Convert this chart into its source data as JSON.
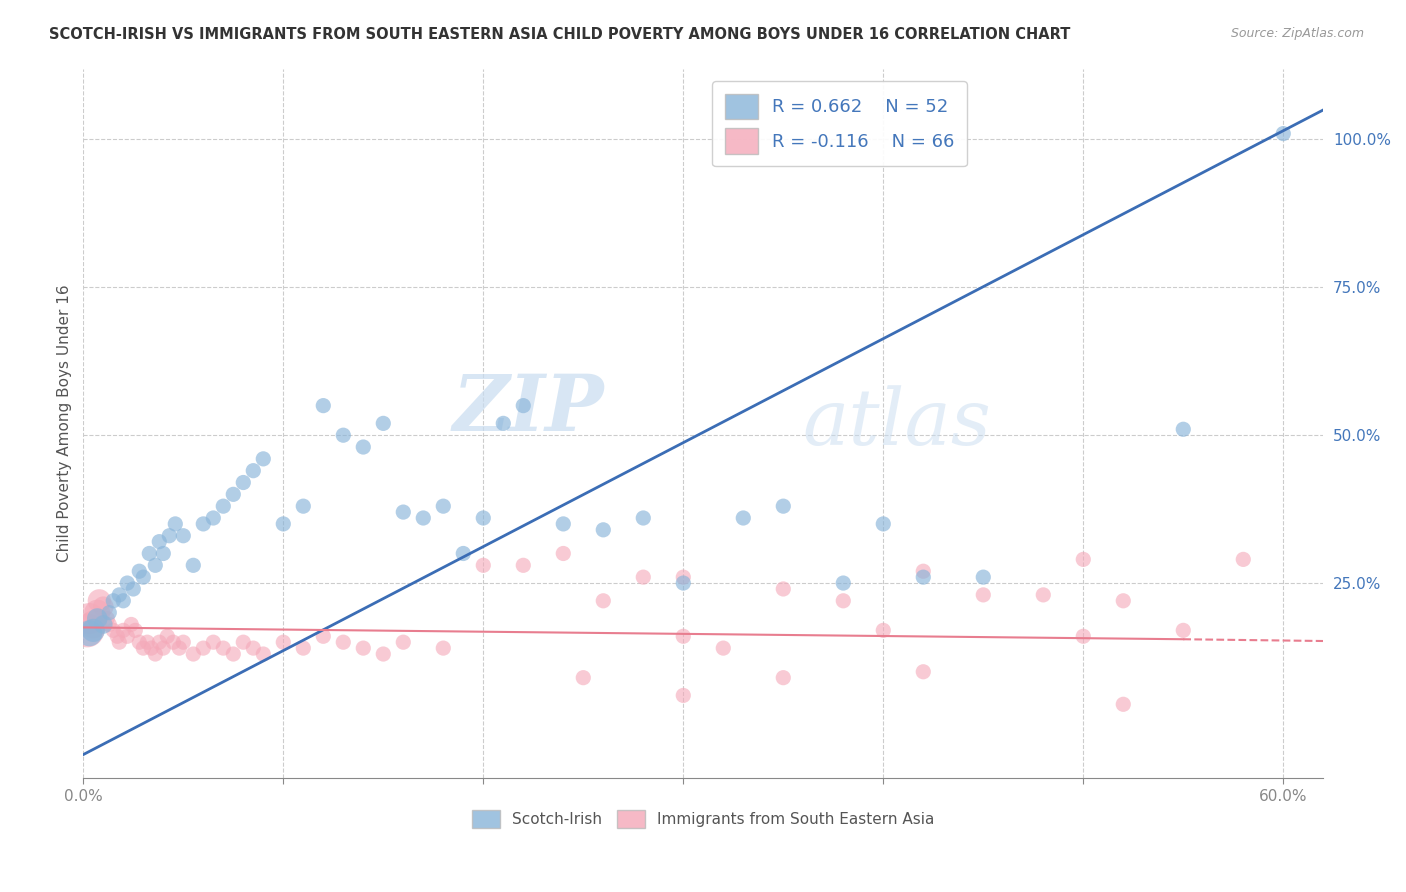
{
  "title": "SCOTCH-IRISH VS IMMIGRANTS FROM SOUTH EASTERN ASIA CHILD POVERTY AMONG BOYS UNDER 16 CORRELATION CHART",
  "source": "Source: ZipAtlas.com",
  "ylabel": "Child Poverty Among Boys Under 16",
  "xlim": [
    0.0,
    0.62
  ],
  "ylim": [
    -0.08,
    1.12
  ],
  "xtick_vals": [
    0.0,
    0.1,
    0.2,
    0.3,
    0.4,
    0.5,
    0.6
  ],
  "xtick_labels": [
    "0.0%",
    "",
    "",
    "",
    "",
    "",
    "60.0%"
  ],
  "ytick_vals": [
    0.25,
    0.5,
    0.75,
    1.0
  ],
  "right_ytick_labels": [
    "25.0%",
    "50.0%",
    "75.0%",
    "100.0%"
  ],
  "watermark_zip": "ZIP",
  "watermark_atlas": "atlas",
  "legend_blue_R": "R = 0.662",
  "legend_blue_N": "N = 52",
  "legend_pink_R": "R = -0.116",
  "legend_pink_N": "N = 66",
  "blue_color": "#89B4D9",
  "pink_color": "#F4A8B8",
  "blue_line_color": "#3B6DB5",
  "pink_line_color": "#E87D8F",
  "grid_color": "#CCCCCC",
  "background_color": "#FFFFFF",
  "blue_line_x0": 0.0,
  "blue_line_y0": -0.04,
  "blue_line_x1": 0.62,
  "blue_line_y1": 1.05,
  "pink_line_x0": 0.0,
  "pink_line_y0": 0.175,
  "pink_line_x1": 0.55,
  "pink_line_y1": 0.155,
  "pink_line_dash_x0": 0.55,
  "pink_line_dash_y0": 0.155,
  "pink_line_dash_x1": 0.62,
  "pink_line_dash_y1": 0.152,
  "blue_scatter_x": [
    0.003,
    0.005,
    0.007,
    0.01,
    0.013,
    0.015,
    0.018,
    0.02,
    0.022,
    0.025,
    0.028,
    0.03,
    0.033,
    0.036,
    0.038,
    0.04,
    0.043,
    0.046,
    0.05,
    0.055,
    0.06,
    0.065,
    0.07,
    0.075,
    0.08,
    0.085,
    0.09,
    0.1,
    0.11,
    0.12,
    0.13,
    0.14,
    0.15,
    0.16,
    0.17,
    0.18,
    0.19,
    0.2,
    0.21,
    0.22,
    0.24,
    0.26,
    0.28,
    0.3,
    0.33,
    0.35,
    0.38,
    0.4,
    0.42,
    0.45,
    0.55,
    0.6
  ],
  "blue_scatter_y": [
    0.165,
    0.17,
    0.19,
    0.18,
    0.2,
    0.22,
    0.23,
    0.22,
    0.25,
    0.24,
    0.27,
    0.26,
    0.3,
    0.28,
    0.32,
    0.3,
    0.33,
    0.35,
    0.33,
    0.28,
    0.35,
    0.36,
    0.38,
    0.4,
    0.42,
    0.44,
    0.46,
    0.35,
    0.38,
    0.55,
    0.5,
    0.48,
    0.52,
    0.37,
    0.36,
    0.38,
    0.3,
    0.36,
    0.52,
    0.55,
    0.35,
    0.34,
    0.36,
    0.25,
    0.36,
    0.38,
    0.25,
    0.35,
    0.26,
    0.26,
    0.51,
    1.01
  ],
  "pink_scatter_x": [
    0.002,
    0.003,
    0.005,
    0.007,
    0.008,
    0.01,
    0.012,
    0.013,
    0.015,
    0.017,
    0.018,
    0.02,
    0.022,
    0.024,
    0.026,
    0.028,
    0.03,
    0.032,
    0.034,
    0.036,
    0.038,
    0.04,
    0.042,
    0.045,
    0.048,
    0.05,
    0.055,
    0.06,
    0.065,
    0.07,
    0.075,
    0.08,
    0.085,
    0.09,
    0.1,
    0.11,
    0.12,
    0.13,
    0.14,
    0.15,
    0.16,
    0.18,
    0.2,
    0.22,
    0.24,
    0.26,
    0.28,
    0.3,
    0.32,
    0.35,
    0.38,
    0.4,
    0.42,
    0.45,
    0.48,
    0.5,
    0.52,
    0.55,
    0.58,
    0.5,
    0.25,
    0.3,
    0.35,
    0.3,
    0.42,
    0.52
  ],
  "pink_scatter_y": [
    0.17,
    0.19,
    0.18,
    0.2,
    0.22,
    0.21,
    0.19,
    0.18,
    0.17,
    0.16,
    0.15,
    0.17,
    0.16,
    0.18,
    0.17,
    0.15,
    0.14,
    0.15,
    0.14,
    0.13,
    0.15,
    0.14,
    0.16,
    0.15,
    0.14,
    0.15,
    0.13,
    0.14,
    0.15,
    0.14,
    0.13,
    0.15,
    0.14,
    0.13,
    0.15,
    0.14,
    0.16,
    0.15,
    0.14,
    0.13,
    0.15,
    0.14,
    0.28,
    0.28,
    0.3,
    0.22,
    0.26,
    0.16,
    0.14,
    0.24,
    0.22,
    0.17,
    0.27,
    0.23,
    0.23,
    0.29,
    0.22,
    0.17,
    0.29,
    0.16,
    0.09,
    0.06,
    0.09,
    0.26,
    0.1,
    0.045
  ],
  "pink_scatter_sizes_large": [
    0,
    1,
    2,
    3,
    4,
    5
  ],
  "dot_size_uniform": 120
}
